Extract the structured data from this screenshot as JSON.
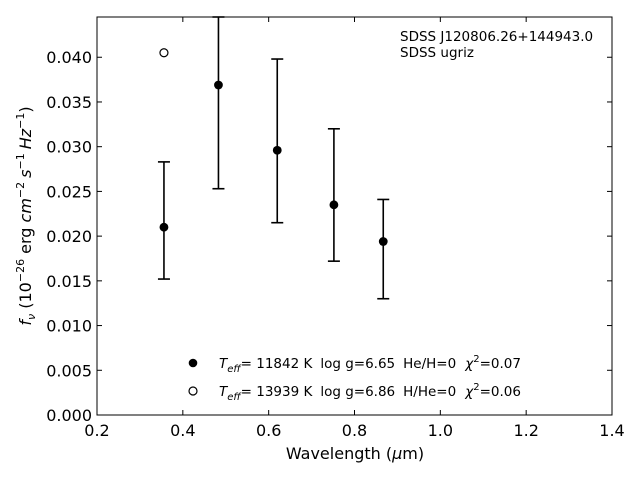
{
  "chart_data": {
    "type": "scatter",
    "xlabel": {
      "main": "Wavelength (",
      "mu": "μ",
      "unit": "m)"
    },
    "ylabel": {
      "f": "f",
      "nu": "ν",
      "open": " (10",
      "e1": "−26",
      "erg": " erg ",
      "cm": "cm",
      "e2": "−2",
      "s": "s",
      "e3": "−1",
      "hz": "Hz",
      "e4": "−1",
      "close": ")"
    },
    "xlim": [
      0.2,
      1.4
    ],
    "ylim": [
      0.0,
      0.0445
    ],
    "xticks": [
      0.2,
      0.4,
      0.6,
      0.8,
      1.0,
      1.2,
      1.4
    ],
    "yticks": [
      0.0,
      0.005,
      0.01,
      0.015,
      0.02,
      0.025,
      0.03,
      0.035,
      0.04
    ],
    "xtick_labels": [
      "0.2",
      "0.4",
      "0.6",
      "0.8",
      "1.0",
      "1.2",
      "1.4"
    ],
    "ytick_labels": [
      "0.000",
      "0.005",
      "0.010",
      "0.015",
      "0.020",
      "0.025",
      "0.030",
      "0.035",
      "0.040"
    ],
    "annotation": [
      "SDSS J120806.26+144943.0",
      "SDSS ugriz"
    ],
    "series": [
      {
        "marker": "filled",
        "points": [
          {
            "x": 0.356,
            "y": 0.021,
            "lo": 0.0152,
            "hi": 0.0283
          },
          {
            "x": 0.483,
            "y": 0.0369,
            "lo": 0.0253,
            "hi": 0.0445
          },
          {
            "x": 0.62,
            "y": 0.0296,
            "lo": 0.0215,
            "hi": 0.0398
          },
          {
            "x": 0.752,
            "y": 0.0235,
            "lo": 0.0172,
            "hi": 0.032
          },
          {
            "x": 0.867,
            "y": 0.0194,
            "lo": 0.013,
            "hi": 0.0241
          }
        ]
      },
      {
        "marker": "open",
        "points": [
          {
            "x": 0.356,
            "y": 0.0405
          }
        ]
      }
    ],
    "legend": [
      {
        "marker": "filled",
        "T": "T",
        "eff": "eff",
        "teff": "= 11842 K",
        "logg": "log g=6.65",
        "comp": "He/H=0",
        "chi": "χ",
        "two": "2",
        "chiv": "=0.07"
      },
      {
        "marker": "open",
        "T": "T",
        "eff": "eff",
        "teff": "= 13939 K",
        "logg": "log g=6.86",
        "comp": "H/He=0",
        "chi": "χ",
        "two": "2",
        "chiv": "=0.06"
      }
    ]
  }
}
